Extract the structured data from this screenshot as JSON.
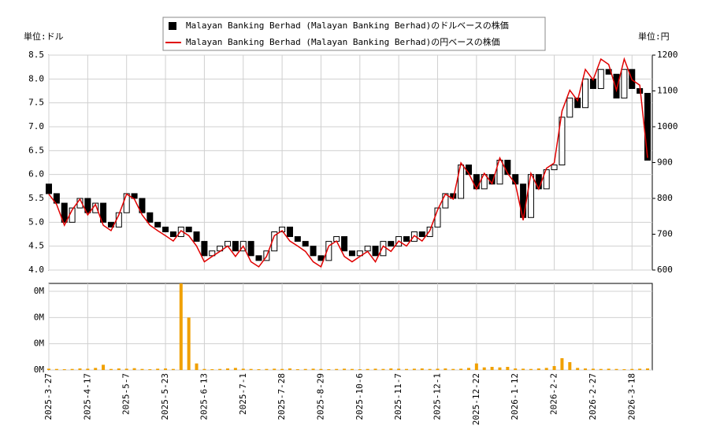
{
  "chart_data": [
    {
      "type": "candlestick",
      "ylabel": "単位:ドル",
      "y2label": "単位:円",
      "ylim": [
        4,
        8.5
      ],
      "yticks": [
        {
          "value": 4,
          "label": "4.0"
        },
        4.5,
        {
          "value": 5,
          "label": "5.0"
        },
        5.5,
        {
          "value": 6,
          "label": "6.0"
        },
        6.5,
        {
          "value": 7,
          "label": "7.0"
        },
        7.5,
        {
          "value": 8,
          "label": "8.0"
        },
        8.5
      ],
      "y2lim": [
        600,
        1200
      ],
      "y2ticks": [
        600,
        700,
        800,
        900,
        1000,
        1100,
        1200
      ],
      "grid": true,
      "legend": "top",
      "series": [
        {
          "name": "Malayan Banking Berhad (Malayan Banking Berhad)のドルベースの株価",
          "color": "#000000",
          "open": [
            5.8,
            5.6,
            5.4,
            5.0,
            5.3,
            5.5,
            5.2,
            5.4,
            5.0,
            4.9,
            5.2,
            5.6,
            5.5,
            5.2,
            5.0,
            4.9,
            4.8,
            4.7,
            4.9,
            4.8,
            4.6,
            4.3,
            4.4,
            4.5,
            4.6,
            4.4,
            4.6,
            4.3,
            4.2,
            4.4,
            4.8,
            4.9,
            4.7,
            4.6,
            4.5,
            4.3,
            4.2,
            4.6,
            4.7,
            4.4,
            4.3,
            4.4,
            4.5,
            4.3,
            4.6,
            4.5,
            4.7,
            4.6,
            4.8,
            4.7,
            4.9,
            5.3,
            5.6,
            5.5,
            6.2,
            6.0,
            5.7,
            6.0,
            5.8,
            6.3,
            6.0,
            5.8,
            5.1,
            6.0,
            5.7,
            6.1,
            6.2,
            7.2,
            7.6,
            7.4,
            8.0,
            7.8,
            8.2,
            8.1,
            7.6,
            8.2,
            7.8,
            7.7
          ],
          "close": [
            5.6,
            5.4,
            5.0,
            5.3,
            5.5,
            5.2,
            5.4,
            5.0,
            4.9,
            5.2,
            5.6,
            5.5,
            5.2,
            5.0,
            4.9,
            4.8,
            4.7,
            4.9,
            4.8,
            4.6,
            4.3,
            4.4,
            4.5,
            4.6,
            4.4,
            4.6,
            4.3,
            4.2,
            4.4,
            4.8,
            4.9,
            4.7,
            4.6,
            4.5,
            4.3,
            4.2,
            4.6,
            4.7,
            4.4,
            4.3,
            4.4,
            4.5,
            4.3,
            4.6,
            4.5,
            4.7,
            4.6,
            4.8,
            4.7,
            4.9,
            5.3,
            5.6,
            5.5,
            6.2,
            6.0,
            5.7,
            6.0,
            5.8,
            6.3,
            6.0,
            5.8,
            5.1,
            6.0,
            5.7,
            6.1,
            6.2,
            7.2,
            7.6,
            7.4,
            8.0,
            7.8,
            8.2,
            8.1,
            7.6,
            8.2,
            7.8,
            7.7,
            6.3
          ]
        },
        {
          "name": "Malayan Banking Berhad (Malayan Banking Berhad)の円ベースの株価",
          "color": "#e00000",
          "axis": "y2",
          "values": [
            812,
            783,
            725,
            768,
            798,
            754,
            783,
            725,
            710,
            754,
            812,
            798,
            754,
            725,
            710,
            696,
            681,
            710,
            696,
            667,
            623,
            638,
            652,
            667,
            638,
            667,
            623,
            609,
            638,
            696,
            710,
            681,
            667,
            652,
            623,
            609,
            667,
            681,
            638,
            623,
            638,
            652,
            623,
            667,
            652,
            681,
            667,
            696,
            681,
            710,
            768,
            812,
            798,
            899,
            870,
            826,
            870,
            841,
            913,
            870,
            841,
            739,
            870,
            826,
            884,
            899,
            1044,
            1102,
            1073,
            1160,
            1131,
            1189,
            1174,
            1102,
            1189,
            1131,
            1116,
            913
          ]
        }
      ]
    },
    {
      "type": "bar",
      "color": "#f0a000",
      "ylim": [
        0,
        0.33
      ],
      "yticks": [
        {
          "value": 0,
          "label": "0M"
        },
        {
          "value": 0.1,
          "label": "0M"
        },
        {
          "value": 0.2,
          "label": "0M"
        },
        {
          "value": 0.3,
          "label": "0M"
        }
      ],
      "categories": [
        "2025-3-27",
        null,
        null,
        null,
        null,
        "2025-4-17",
        null,
        null,
        null,
        null,
        "2025-5-7",
        null,
        null,
        null,
        null,
        "2025-5-23",
        null,
        null,
        null,
        null,
        "2025-6-13",
        null,
        null,
        null,
        null,
        "2025-7-1",
        null,
        null,
        null,
        null,
        "2025-7-28",
        null,
        null,
        null,
        null,
        "2025-8-29",
        null,
        null,
        null,
        null,
        "2025-10-6",
        null,
        null,
        null,
        null,
        "2025-11-7",
        null,
        null,
        null,
        null,
        "2025-12-1",
        null,
        null,
        null,
        null,
        "2025-12-22",
        null,
        null,
        null,
        null,
        "2026-1-12",
        null,
        null,
        null,
        null,
        "2026-2-2",
        null,
        null,
        null,
        null,
        "2026-2-27",
        null,
        null,
        null,
        null,
        "2026-3-18",
        null,
        null
      ],
      "values": [
        0.005,
        0.004,
        0.003,
        0.004,
        0.006,
        0.005,
        0.008,
        0.02,
        0.004,
        0.006,
        0.005,
        0.007,
        0.004,
        0.003,
        0.005,
        0.006,
        0.004,
        0.33,
        0.2,
        0.025,
        0.004,
        0.003,
        0.004,
        0.006,
        0.008,
        0.005,
        0.004,
        0.003,
        0.004,
        0.005,
        0.004,
        0.006,
        0.003,
        0.004,
        0.005,
        0.004,
        0.003,
        0.004,
        0.005,
        0.004,
        0.003,
        0.004,
        0.005,
        0.004,
        0.006,
        0.005,
        0.004,
        0.005,
        0.006,
        0.004,
        0.005,
        0.006,
        0.004,
        0.005,
        0.008,
        0.025,
        0.01,
        0.012,
        0.01,
        0.012,
        0.006,
        0.005,
        0.004,
        0.006,
        0.008,
        0.015,
        0.045,
        0.03,
        0.008,
        0.006,
        0.005,
        0.004,
        0.005,
        0.004,
        0.003,
        0.004,
        0.005,
        0.006
      ]
    }
  ]
}
